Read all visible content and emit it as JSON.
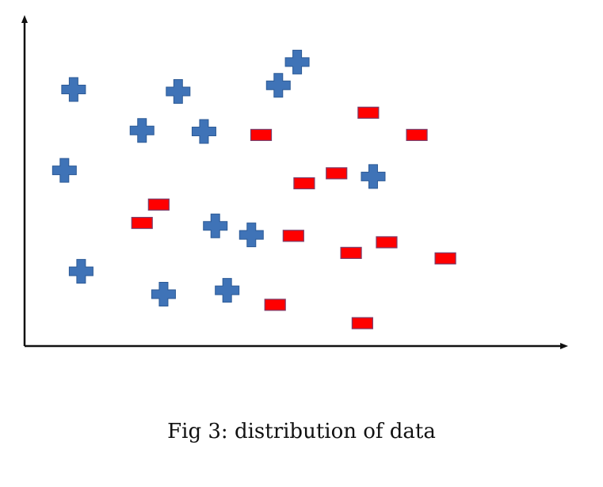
{
  "caption": "Fig 3: distribution of data",
  "chart_data": {
    "type": "scatter",
    "xlim": [
      0,
      100
    ],
    "ylim": [
      0,
      100
    ],
    "grid": false,
    "legend": "none",
    "axes": "arrows, no ticks or labels",
    "series": [
      {
        "marker": "plus",
        "color": "#3F73B7",
        "points": [
          [
            9.1,
            79.6
          ],
          [
            28.5,
            79.0
          ],
          [
            47.1,
            80.9
          ],
          [
            50.6,
            88.1
          ],
          [
            21.8,
            66.9
          ],
          [
            33.3,
            66.6
          ],
          [
            7.4,
            54.5
          ],
          [
            64.7,
            52.6
          ],
          [
            35.4,
            37.3
          ],
          [
            42.1,
            34.5
          ],
          [
            10.5,
            23.2
          ],
          [
            25.8,
            16.1
          ],
          [
            37.6,
            17.3
          ]
        ]
      },
      {
        "marker": "dash",
        "color": "#FF0000",
        "points": [
          [
            63.8,
            72.4
          ],
          [
            43.9,
            65.5
          ],
          [
            72.8,
            65.5
          ],
          [
            51.9,
            50.5
          ],
          [
            57.9,
            53.6
          ],
          [
            24.9,
            43.9
          ],
          [
            21.8,
            38.2
          ],
          [
            49.9,
            34.2
          ],
          [
            60.6,
            28.9
          ],
          [
            67.2,
            32.2
          ],
          [
            78.1,
            27.2
          ],
          [
            46.5,
            12.8
          ],
          [
            62.7,
            7.1
          ]
        ]
      }
    ]
  }
}
